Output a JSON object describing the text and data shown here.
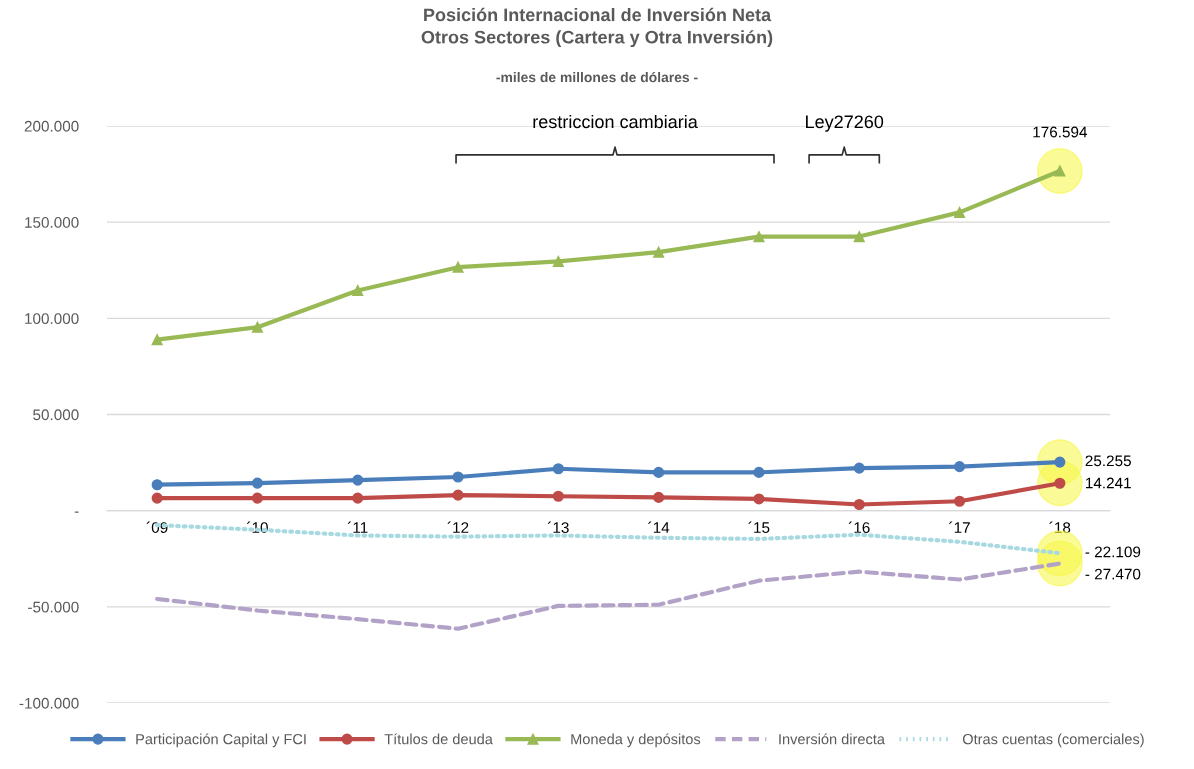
{
  "chart_data": {
    "type": "line",
    "title": "Posición Internacional de Inversión Neta\nOtros Sectores (Cartera y Otra Inversión)",
    "subtitle": "-miles de millones de dólares -",
    "categories": [
      "´09",
      "´10",
      "´11",
      "´12",
      "´13",
      "´14",
      "´15",
      "´16",
      "´17",
      "´18"
    ],
    "series": [
      {
        "name": "Participación Capital y FCI",
        "color": "#4a7ebb",
        "marker": "circle",
        "line_style": "solid",
        "values": [
          13500,
          14300,
          15900,
          17500,
          21800,
          19900,
          19900,
          22100,
          22900,
          25255
        ],
        "value_labels": [
          null,
          null,
          null,
          null,
          null,
          null,
          null,
          null,
          null,
          "25.255"
        ]
      },
      {
        "name": "Títulos de deuda",
        "color": "#be4b48",
        "marker": "circle",
        "line_style": "solid",
        "values": [
          6500,
          6500,
          6500,
          8100,
          7500,
          6900,
          6100,
          3200,
          4900,
          14241
        ],
        "value_labels": [
          null,
          null,
          null,
          null,
          null,
          null,
          null,
          null,
          null,
          "14.241"
        ]
      },
      {
        "name": "Moneda y depósitos",
        "color": "#98b954",
        "marker": "triangle",
        "line_style": "solid",
        "values": [
          88900,
          95400,
          114500,
          126600,
          129600,
          134400,
          142500,
          142500,
          155100,
          176594
        ],
        "value_labels": [
          null,
          null,
          null,
          null,
          null,
          null,
          null,
          null,
          null,
          "176.594"
        ]
      },
      {
        "name": "Inversión directa",
        "color": "#b3a2c7",
        "marker": "none",
        "line_style": "dashed",
        "values": [
          -45900,
          -51900,
          -56400,
          -61400,
          -49500,
          -48900,
          -36400,
          -31700,
          -35800,
          -27470
        ],
        "value_labels": [
          null,
          null,
          null,
          null,
          null,
          null,
          null,
          null,
          null,
          "- 27.470"
        ]
      },
      {
        "name": "Otras cuentas (comerciales)",
        "color": "#a6d9e0",
        "marker": "none",
        "line_style": "dotted",
        "values": [
          -7500,
          -9900,
          -12900,
          -13500,
          -12900,
          -14100,
          -14700,
          -12500,
          -16200,
          -22109
        ],
        "value_labels": [
          null,
          null,
          null,
          null,
          null,
          null,
          null,
          null,
          null,
          "- 22.109"
        ]
      }
    ],
    "ylim": [
      -100000,
      200000
    ],
    "yticks": [
      {
        "value": -100000,
        "label": "-100.000"
      },
      {
        "value": -50000,
        "label": "-50.000"
      },
      {
        "value": 0,
        "label": "-"
      },
      {
        "value": 50000,
        "label": "50.000"
      },
      {
        "value": 100000,
        "label": "100.000"
      },
      {
        "value": 150000,
        "label": "150.000"
      },
      {
        "value": 200000,
        "label": "200.000"
      }
    ],
    "grid": "y",
    "legend": "bottom",
    "annotations": [
      "restriccion cambiaria",
      "Ley27260"
    ]
  }
}
